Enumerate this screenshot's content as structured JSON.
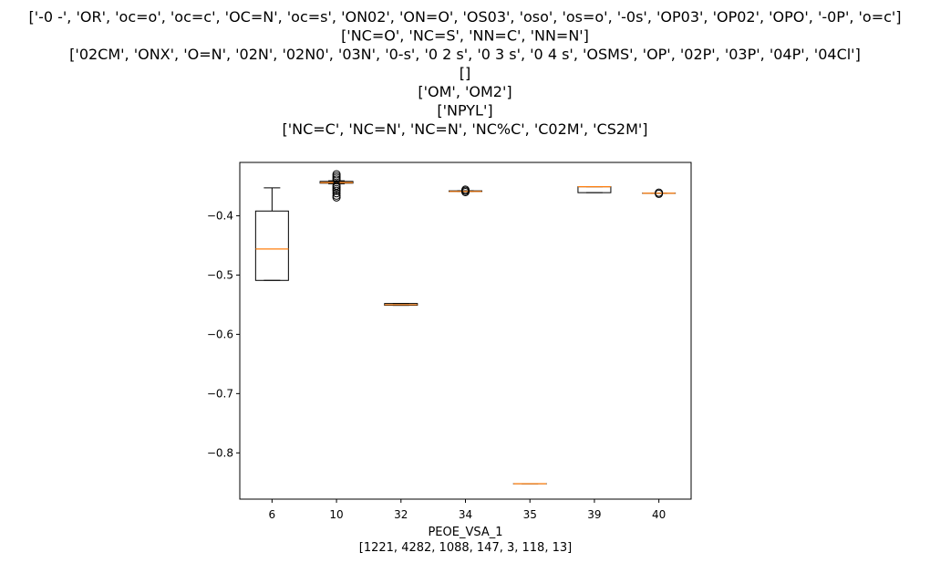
{
  "chart_data": {
    "type": "box",
    "title_lines": [
      "['-0  -', 'OR', 'oc=o', 'oc=c', 'OC=N', 'oc=s', 'ON02', 'ON=O', 'OS03', 'oso', 'os=o', '-0s', 'OP03', 'OP02', 'OPO', '-0P', 'o=c']",
      "['NC=O', 'NC=S', 'NN=C', 'NN=N']",
      "['02CM', 'ONX', 'O=N', '02N', '02N0', '03N', '0-s', '0 2 s', '0 3 s', '0 4 s', 'OSMS', 'OP', '02P', '03P', '04P', '04Cl']",
      "[]",
      "['OM', 'OM2']",
      "['NPYL']",
      "['NC=C', 'NC=N', 'NC=N', 'NC%C', 'C02M', 'CS2M']"
    ],
    "xlabel": "PEOE_VSA_1",
    "xlabel_counts": "[1221, 4282, 1088, 147, 3, 118, 13]",
    "categories": [
      "6",
      "10",
      "32",
      "34",
      "35",
      "39",
      "40"
    ],
    "ylim": [
      -0.878,
      -0.31
    ],
    "yticks": [
      -0.4,
      -0.5,
      -0.6,
      -0.7,
      -0.8
    ],
    "ytick_labels": [
      "−0.4",
      "−0.5",
      "−0.6",
      "−0.7",
      "−0.8"
    ],
    "boxes": [
      {
        "category": "6",
        "whisker_low": -0.509,
        "q1": -0.509,
        "median": -0.456,
        "q3": -0.392,
        "whisker_high": -0.353,
        "outliers": []
      },
      {
        "category": "10",
        "whisker_low": -0.346,
        "q1": -0.345,
        "median": -0.344,
        "q3": -0.342,
        "whisker_high": -0.341,
        "outliers": [
          -0.33,
          -0.333,
          -0.336,
          -0.339,
          -0.349,
          -0.352,
          -0.355,
          -0.358,
          -0.362,
          -0.366,
          -0.369
        ]
      },
      {
        "category": "32",
        "whisker_low": -0.551,
        "q1": -0.551,
        "median": -0.55,
        "q3": -0.548,
        "whisker_high": -0.548,
        "outliers": []
      },
      {
        "category": "34",
        "whisker_low": -0.359,
        "q1": -0.359,
        "median": -0.359,
        "q3": -0.358,
        "whisker_high": -0.358,
        "outliers": [
          -0.356,
          -0.358,
          -0.36
        ]
      },
      {
        "category": "35",
        "whisker_low": -0.852,
        "q1": -0.852,
        "median": -0.852,
        "q3": -0.852,
        "whisker_high": -0.852,
        "outliers": []
      },
      {
        "category": "39",
        "whisker_low": -0.361,
        "q1": -0.361,
        "median": -0.351,
        "q3": -0.351,
        "whisker_high": -0.351,
        "outliers": []
      },
      {
        "category": "40",
        "whisker_low": -0.362,
        "q1": -0.362,
        "median": -0.362,
        "q3": -0.362,
        "whisker_high": -0.362,
        "outliers": [
          -0.361,
          -0.363
        ]
      }
    ],
    "colors": {
      "box": "#000000",
      "median": "#ff7f0e",
      "background": "#ffffff"
    },
    "grid": false,
    "legend": "none"
  }
}
